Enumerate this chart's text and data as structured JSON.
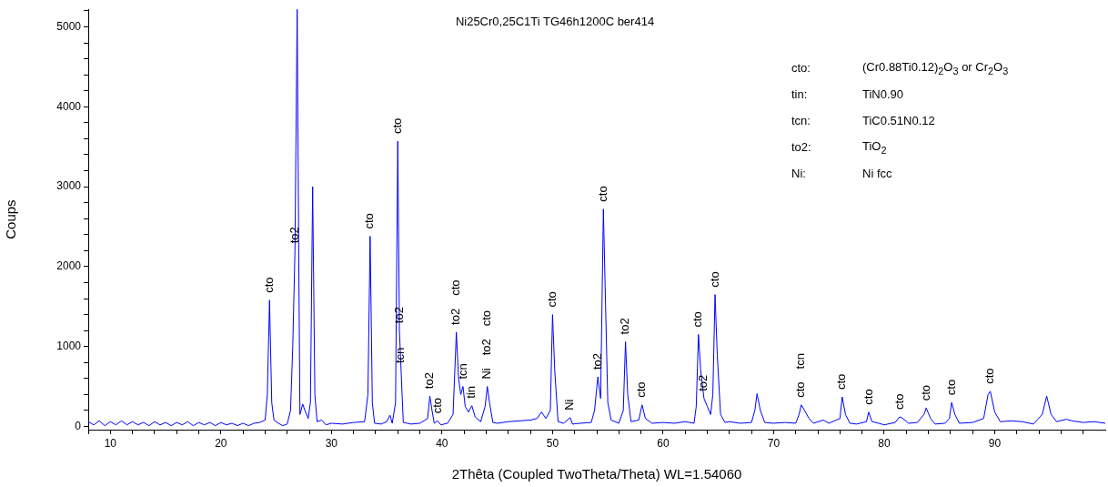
{
  "chart_data": {
    "type": "line",
    "title": "Ni25Cr0,25C1Ti TG46h1200C ber414",
    "xlabel": "2Thêta (Coupled TwoTheta/Theta) WL=1.54060",
    "ylabel": "Coups",
    "color": "#0000ff",
    "x": [
      8,
      8.5,
      9,
      9.5,
      10,
      10.5,
      11,
      11.5,
      12,
      12.5,
      13,
      13.5,
      14,
      14.5,
      15,
      15.5,
      16,
      16.5,
      17,
      17.5,
      18,
      18.5,
      19,
      19.5,
      20,
      20.5,
      21,
      21.5,
      22,
      22.5,
      23,
      23.5,
      24.0,
      24.2,
      24.4,
      24.6,
      24.8,
      25.2,
      25.6,
      26.0,
      26.3,
      26.5,
      26.7,
      26.9,
      27.05,
      27.15,
      27.4,
      27.6,
      27.9,
      28.1,
      28.3,
      28.5,
      28.7,
      29.1,
      29.5,
      30,
      31,
      32,
      33.0,
      33.3,
      33.5,
      33.7,
      33.9,
      34.5,
      35.0,
      35.3,
      35.5,
      35.8,
      36.0,
      36.15,
      36.3,
      36.5,
      37.2,
      38,
      38.7,
      38.9,
      39.1,
      39.3,
      39.6,
      39.9,
      40.5,
      41.0,
      41.3,
      41.5,
      41.7,
      41.9,
      42.1,
      42.4,
      42.7,
      43.0,
      43.5,
      43.9,
      44.1,
      44.3,
      44.6,
      45,
      46,
      47,
      48,
      48.6,
      49.0,
      49.4,
      49.8,
      50.0,
      50.2,
      50.5,
      51,
      51.6,
      51.8,
      52.5,
      53.5,
      53.8,
      54.1,
      54.35,
      54.6,
      54.8,
      55.0,
      55.3,
      56,
      56.4,
      56.6,
      56.8,
      57.1,
      57.8,
      58.1,
      58.4,
      59,
      60,
      61,
      62,
      62.8,
      63.0,
      63.2,
      63.4,
      63.7,
      64.0,
      64.3,
      64.5,
      64.7,
      64.9,
      65.2,
      65.6,
      66,
      67,
      68,
      68.3,
      68.5,
      68.8,
      69.2,
      70,
      71,
      72,
      72.3,
      72.5,
      72.8,
      73.2,
      73.6,
      74.5,
      75,
      76.0,
      76.2,
      76.5,
      76.9,
      77.5,
      78.4,
      78.6,
      78.9,
      79.5,
      80,
      81,
      81.4,
      81.7,
      82.2,
      83,
      83.6,
      83.8,
      84.2,
      84.6,
      85.5,
      85.9,
      86.1,
      86.4,
      86.8,
      88,
      89.0,
      89.4,
      89.6,
      90.0,
      90.5,
      91.5,
      92.5,
      93.5,
      94.3,
      94.7,
      95.1,
      95.6,
      96.5,
      97,
      98,
      99,
      100
    ],
    "values": [
      60,
      20,
      70,
      10,
      60,
      20,
      70,
      20,
      60,
      20,
      50,
      10,
      60,
      20,
      50,
      10,
      50,
      20,
      60,
      10,
      50,
      20,
      50,
      10,
      50,
      20,
      40,
      10,
      40,
      10,
      40,
      50,
      80,
      400,
      1580,
      300,
      80,
      40,
      10,
      30,
      200,
      1000,
      2200,
      5220,
      2000,
      150,
      280,
      200,
      100,
      300,
      3000,
      400,
      60,
      80,
      20,
      40,
      30,
      50,
      60,
      400,
      2380,
      300,
      40,
      30,
      60,
      140,
      40,
      300,
      3570,
      1200,
      700,
      50,
      30,
      40,
      100,
      380,
      200,
      40,
      70,
      20,
      40,
      150,
      1180,
      600,
      400,
      500,
      250,
      180,
      260,
      120,
      60,
      250,
      500,
      300,
      50,
      40,
      60,
      70,
      80,
      100,
      180,
      100,
      200,
      1400,
      700,
      60,
      40,
      110,
      30,
      40,
      50,
      200,
      620,
      350,
      2720,
      1500,
      300,
      80,
      40,
      200,
      1060,
      400,
      60,
      80,
      270,
      100,
      40,
      50,
      40,
      60,
      40,
      250,
      1150,
      700,
      350,
      250,
      150,
      400,
      1650,
      900,
      150,
      50,
      60,
      40,
      50,
      200,
      410,
      200,
      50,
      40,
      50,
      40,
      150,
      270,
      200,
      100,
      40,
      80,
      40,
      100,
      370,
      150,
      40,
      30,
      60,
      180,
      60,
      40,
      20,
      50,
      120,
      100,
      40,
      50,
      150,
      230,
      100,
      30,
      40,
      100,
      300,
      150,
      40,
      50,
      100,
      400,
      440,
      180,
      60,
      70,
      60,
      30,
      150,
      380,
      150,
      60,
      90,
      70,
      50,
      60,
      40
    ],
    "xlim": [
      8,
      100
    ],
    "ylim": [
      -40,
      5220
    ],
    "xticks": [
      {
        "value": 8,
        "label": null
      },
      10,
      {
        "value": 12,
        "label": null
      },
      {
        "value": 14,
        "label": null
      },
      {
        "value": 16,
        "label": null
      },
      {
        "value": 18,
        "label": null
      },
      20,
      {
        "value": 22,
        "label": null
      },
      {
        "value": 24,
        "label": null
      },
      {
        "value": 26,
        "label": null
      },
      {
        "value": 28,
        "label": null
      },
      30,
      {
        "value": 32,
        "label": null
      },
      {
        "value": 34,
        "label": null
      },
      {
        "value": 36,
        "label": null
      },
      {
        "value": 38,
        "label": null
      },
      40,
      {
        "value": 42,
        "label": null
      },
      {
        "value": 44,
        "label": null
      },
      {
        "value": 46,
        "label": null
      },
      {
        "value": 48,
        "label": null
      },
      50,
      {
        "value": 52,
        "label": null
      },
      {
        "value": 54,
        "label": null
      },
      {
        "value": 56,
        "label": null
      },
      {
        "value": 58,
        "label": null
      },
      60,
      {
        "value": 62,
        "label": null
      },
      {
        "value": 64,
        "label": null
      },
      {
        "value": 66,
        "label": null
      },
      {
        "value": 68,
        "label": null
      },
      70,
      {
        "value": 72,
        "label": null
      },
      {
        "value": 74,
        "label": null
      },
      {
        "value": 76,
        "label": null
      },
      {
        "value": 78,
        "label": null
      },
      80,
      {
        "value": 82,
        "label": null
      },
      {
        "value": 84,
        "label": null
      },
      {
        "value": 86,
        "label": null
      },
      {
        "value": 88,
        "label": null
      },
      90,
      {
        "value": 92,
        "label": null
      },
      {
        "value": 94,
        "label": null
      },
      {
        "value": 96,
        "label": null
      },
      {
        "value": 98,
        "label": null
      }
    ],
    "yticks": [
      0,
      {
        "value": 200,
        "label": null
      },
      {
        "value": 400,
        "label": null
      },
      {
        "value": 600,
        "label": null
      },
      {
        "value": 800,
        "label": null
      },
      1000,
      {
        "value": 1200,
        "label": null
      },
      {
        "value": 1400,
        "label": null
      },
      {
        "value": 1600,
        "label": null
      },
      {
        "value": 1800,
        "label": null
      },
      2000,
      {
        "value": 2200,
        "label": null
      },
      {
        "value": 2400,
        "label": null
      },
      {
        "value": 2600,
        "label": null
      },
      {
        "value": 2800,
        "label": null
      },
      3000,
      {
        "value": 3200,
        "label": null
      },
      {
        "value": 3400,
        "label": null
      },
      {
        "value": 3600,
        "label": null
      },
      {
        "value": 3800,
        "label": null
      },
      4000,
      {
        "value": 4200,
        "label": null
      },
      {
        "value": 4400,
        "label": null
      },
      {
        "value": 4600,
        "label": null
      },
      {
        "value": 4800,
        "label": null
      },
      5000,
      {
        "value": 5200,
        "label": null
      }
    ],
    "annotations": [
      "cto: (Cr0.88Ti0.12)$_{2}$O$_{3}$ or Cr$_{2}$O$_{3}$",
      "tin: TiN0.90",
      "tcn: TiC0.51N0.12",
      "to2: TiO$_{2}$",
      "Ni: Ni fcc",
      {
        "text": "cto",
        "x": 24.4,
        "y": 1580
      },
      {
        "text": "to2",
        "x": 26.7,
        "y": 2200
      },
      {
        "text": "cto",
        "x": 33.5,
        "y": 2380
      },
      {
        "text": "cto",
        "x": 36.0,
        "y": 3570
      },
      {
        "text": "to2",
        "x": 36.15,
        "y": 1200
      },
      {
        "text": "tcn",
        "x": 36.3,
        "y": 700
      },
      {
        "text": "to2",
        "x": 38.9,
        "y": 380
      },
      {
        "text": "cto",
        "x": 39.6,
        "y": 70
      },
      {
        "text": "to2",
        "x": 41.3,
        "y": 1180
      },
      "cto",
      {
        "text": "tcn",
        "x": 41.9,
        "y": 500
      },
      {
        "text": "tin",
        "x": 42.7,
        "y": 260
      },
      {
        "text": "Ni",
        "x": 44.1,
        "y": 500
      },
      {
        "text": "to2",
        "x": 44.1,
        "y": 500
      },
      "cto",
      {
        "text": "cto",
        "x": 50.0,
        "y": 1400
      },
      {
        "text": "Ni",
        "x": 51.6,
        "y": 110
      },
      {
        "text": "to2",
        "x": 54.1,
        "y": 620
      },
      {
        "text": "cto",
        "x": 54.6,
        "y": 2720
      },
      {
        "text": "to2",
        "x": 56.6,
        "y": 1060
      },
      {
        "text": "cto",
        "x": 58.1,
        "y": 270
      },
      {
        "text": "cto",
        "x": 63.2,
        "y": 1150
      },
      {
        "text": "to2",
        "x": 63.7,
        "y": 350
      },
      {
        "text": "cto",
        "x": 64.7,
        "y": 1650
      },
      {
        "text": "cto",
        "x": 72.5,
        "y": 270
      },
      "tcn",
      {
        "text": "cto",
        "x": 76.2,
        "y": 370
      },
      {
        "text": "cto",
        "x": 78.6,
        "y": 180
      },
      {
        "text": "cto",
        "x": 81.4,
        "y": 120
      },
      {
        "text": "cto",
        "x": 83.8,
        "y": 230
      },
      {
        "text": "cto",
        "x": 86.1,
        "y": 300
      },
      {
        "text": "cto",
        "x": 89.6,
        "y": 440
      }
    ]
  }
}
